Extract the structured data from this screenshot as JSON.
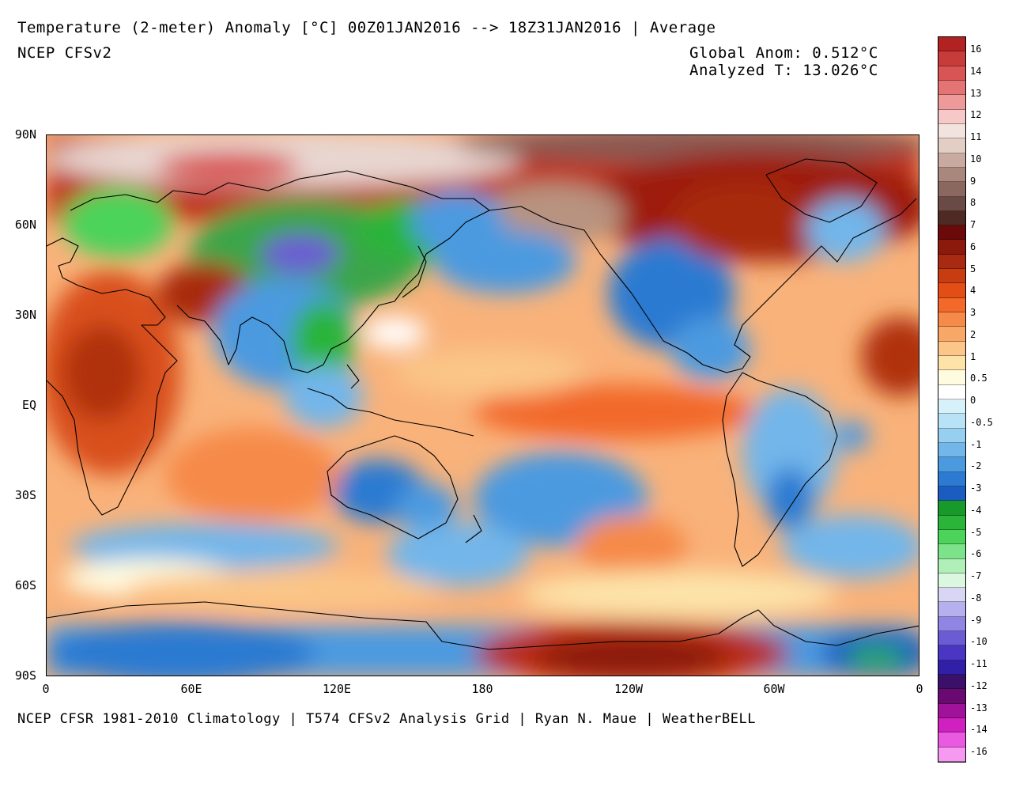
{
  "header": {
    "title": "Temperature (2-meter) Anomaly  [°C] 00Z01JAN2016 --> 18Z31JAN2016 | Average",
    "model": "NCEP CFSv2",
    "global_anom": "Global Anom: 0.512°C",
    "analyzed_t": "Analyzed T: 13.026°C"
  },
  "footer": {
    "credit": "NCEP CFSR 1981-2010 Climatology | T574 CFSv2 Analysis Grid | Ryan N. Maue | WeatherBELL"
  },
  "axes": {
    "lat_labels": [
      "90N",
      "60N",
      "30N",
      "EQ",
      "30S",
      "60S",
      "90S"
    ],
    "lon_labels": [
      "0",
      "60E",
      "120E",
      "180",
      "120W",
      "60W",
      "0"
    ]
  },
  "colorbar": {
    "labels": [
      "16",
      "14",
      "13",
      "12",
      "11",
      "10",
      "9",
      "8",
      "7",
      "6",
      "5",
      "4",
      "3",
      "2",
      "1",
      "0.5",
      "0",
      "-0.5",
      "-1",
      "-2",
      "-3",
      "-4",
      "-5",
      "-6",
      "-7",
      "-8",
      "-9",
      "-10",
      "-11",
      "-12",
      "-13",
      "-14",
      "-16"
    ],
    "colors": [
      "#b22222",
      "#c83b3b",
      "#d95555",
      "#e47373",
      "#ee9a9a",
      "#f6c8c8",
      "#f3e3de",
      "#e3cec6",
      "#c8aaa0",
      "#a9877d",
      "#8a6860",
      "#6a4a44",
      "#4f2a24",
      "#6b0a08",
      "#8b1a0c",
      "#a82a10",
      "#c83c12",
      "#e24e16",
      "#f2692a",
      "#f68a4a",
      "#f9a766",
      "#fbc688",
      "#fde3a8",
      "#fffbe0",
      "#ffffff",
      "#d7f1fa",
      "#b8e3f6",
      "#96cff0",
      "#72b6ea",
      "#4b9ae0",
      "#2c7ad2",
      "#1a5cc0",
      "#179a2a",
      "#2ab43a",
      "#4cd35a",
      "#7de38a",
      "#b0efb8",
      "#dcf7df",
      "#d9d6f5",
      "#b7b0ef",
      "#9185e3",
      "#6c5cd4",
      "#4a36c2",
      "#3020a8",
      "#3a1068",
      "#6a0a70",
      "#a0129a",
      "#d020c0",
      "#ea5ae0",
      "#f59af0"
    ]
  }
}
